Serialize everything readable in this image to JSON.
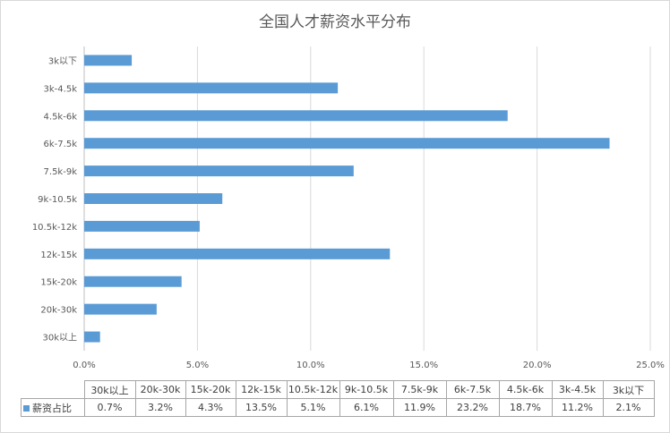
{
  "chart_data": {
    "type": "bar",
    "orientation": "horizontal",
    "title": "全国人才薪资水平分布",
    "categories": [
      "30k以上",
      "20k-30k",
      "15k-20k",
      "12k-15k",
      "10.5k-12k",
      "9k-10.5k",
      "7.5k-9k",
      "6k-7.5k",
      "4.5k-6k",
      "3k-4.5k",
      "3k以下"
    ],
    "series": [
      {
        "name": "薪资占比",
        "values": [
          0.7,
          3.2,
          4.3,
          13.5,
          5.1,
          6.1,
          11.9,
          23.2,
          18.7,
          11.2,
          2.1
        ],
        "labels": [
          "0.7%",
          "3.2%",
          "4.3%",
          "13.5%",
          "5.1%",
          "6.1%",
          "11.9%",
          "23.2%",
          "18.7%",
          "11.2%",
          "2.1%"
        ]
      }
    ],
    "xlim": [
      0,
      25
    ],
    "xticks": [
      "0.0%",
      "5.0%",
      "10.0%",
      "15.0%",
      "20.0%",
      "25.0%"
    ],
    "grid": true,
    "data_table": true,
    "colors": {
      "bar": "#5b9bd5",
      "grid": "#d9d9d9",
      "border": "#a6a6a6"
    }
  }
}
